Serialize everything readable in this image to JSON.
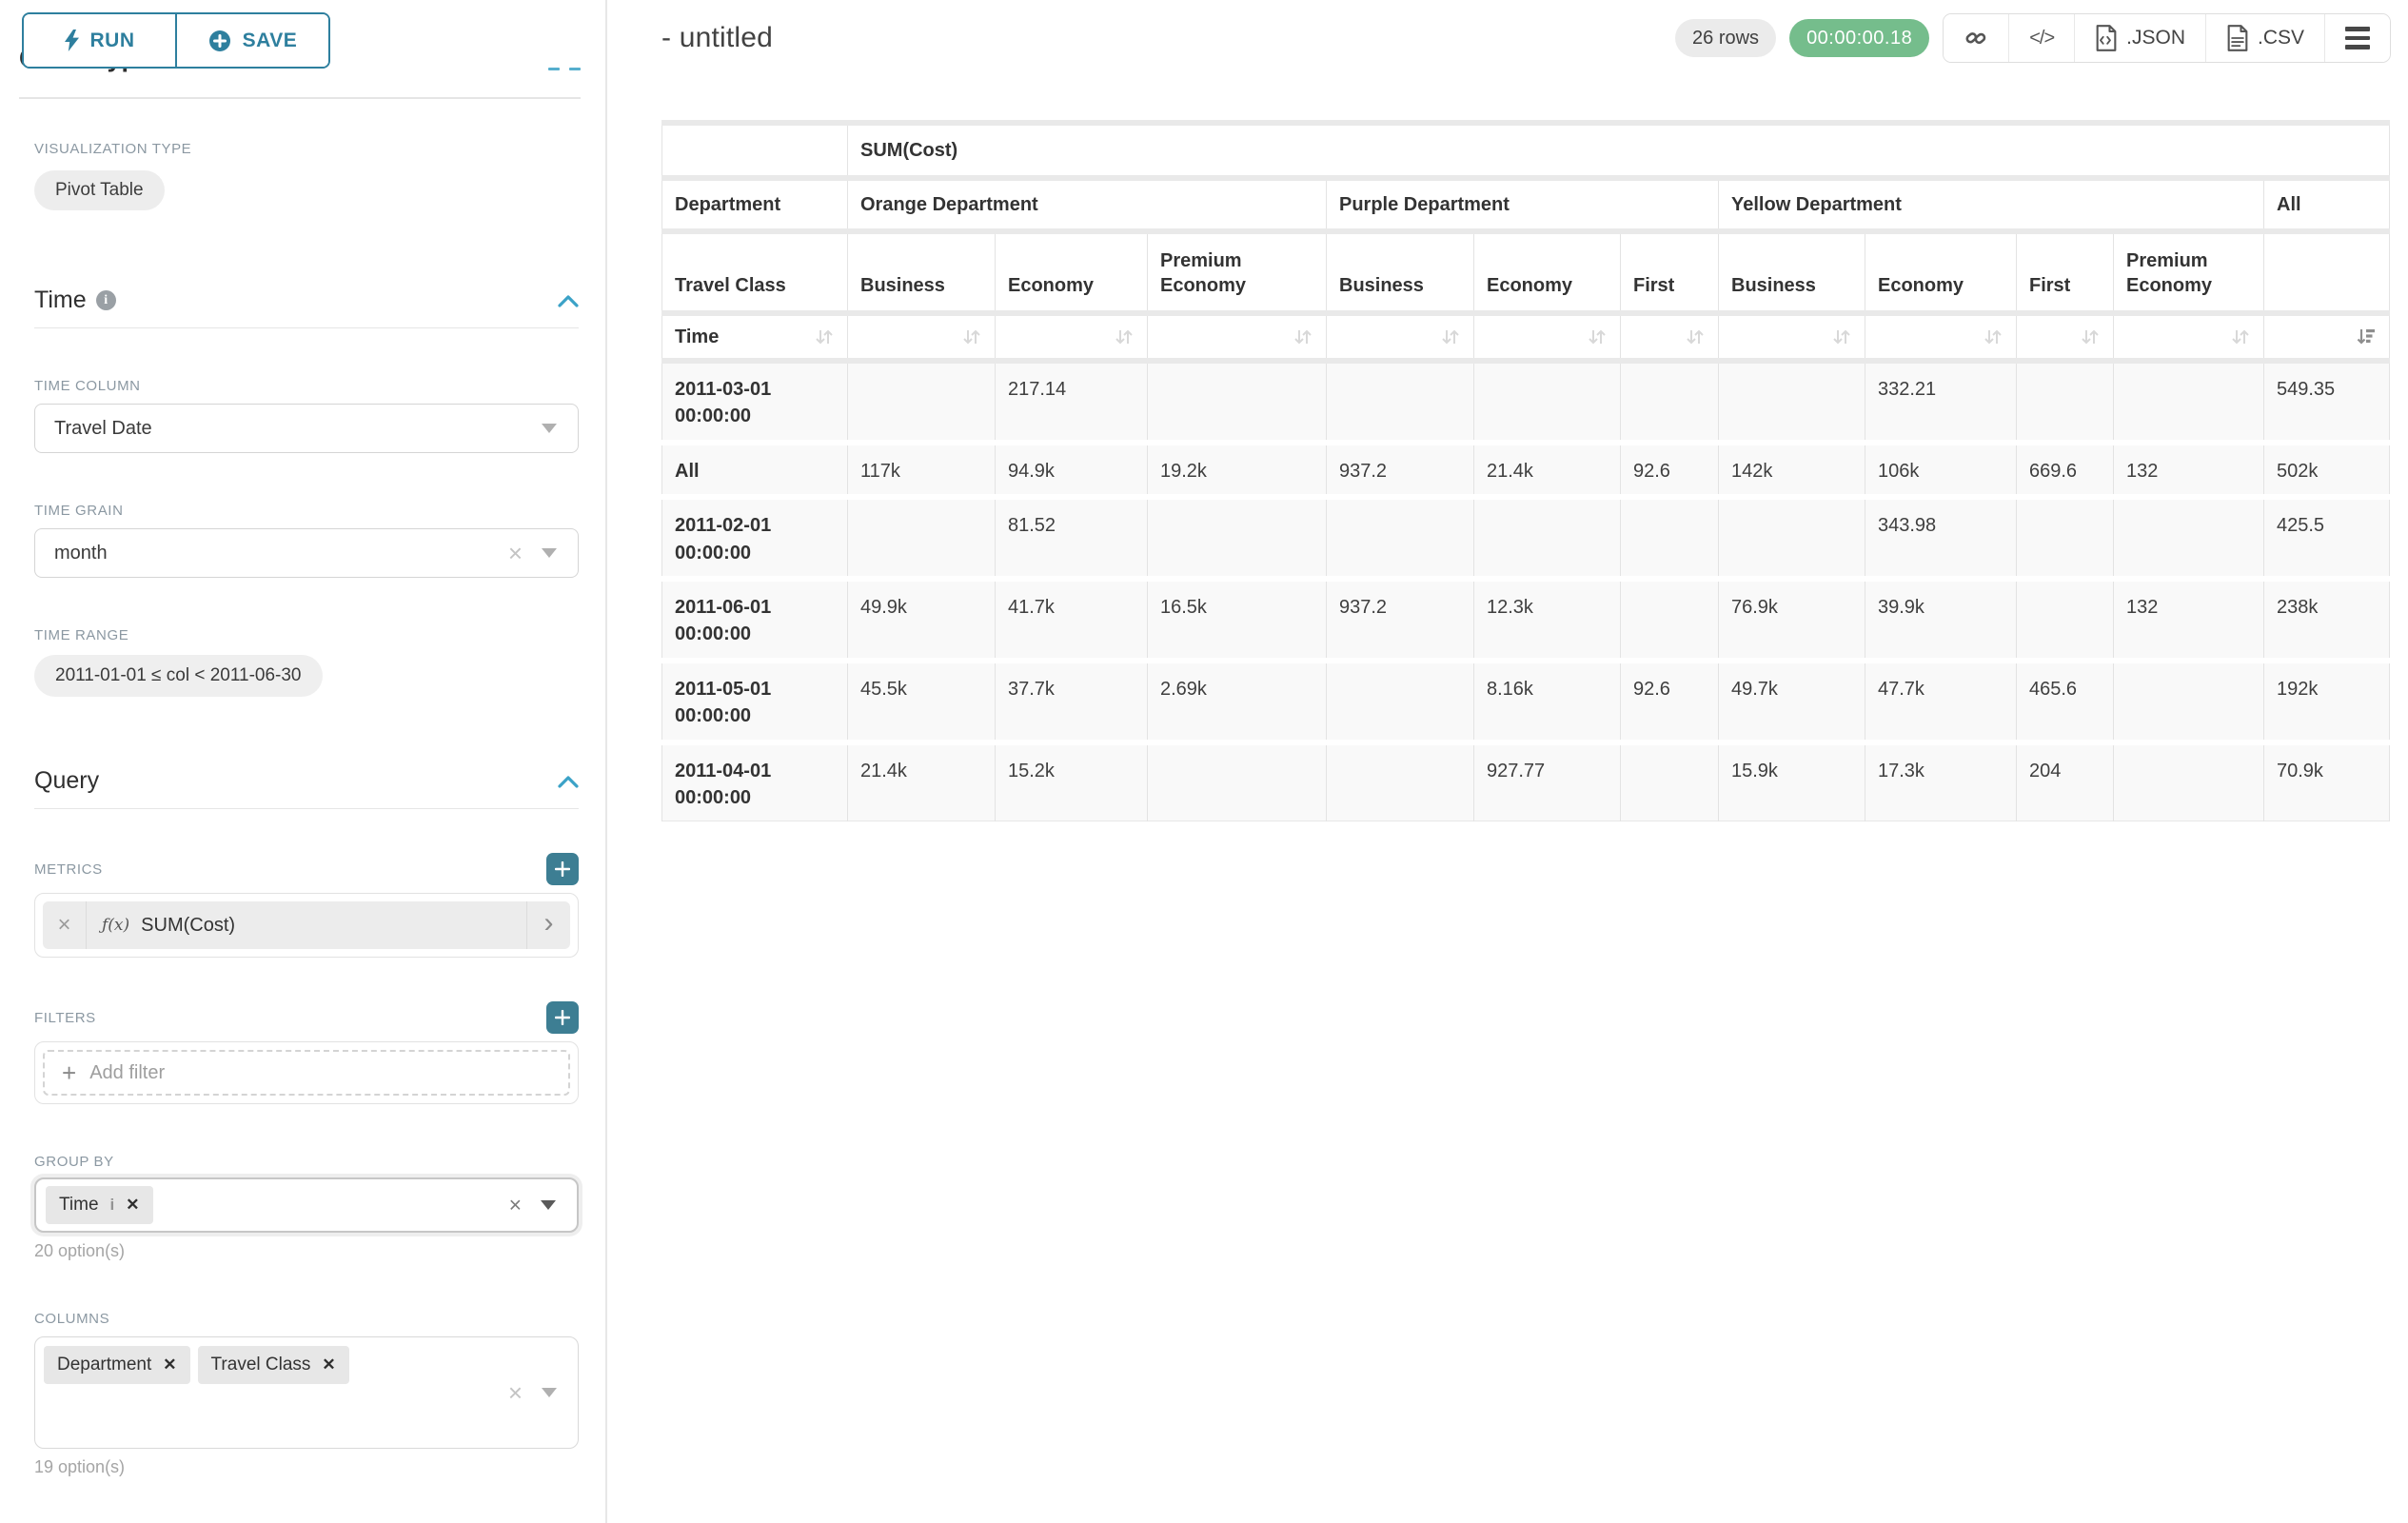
{
  "colors": {
    "accent_teal": "#2e7f9e",
    "plus_button_teal": "#3d7e93",
    "chevron_teal": "#3ba2c7",
    "timer_green": "#75bd8c",
    "header_cell_bg": "#ffffff",
    "data_cell_bg": "#f9f9f9"
  },
  "sidebar": {
    "run_label": "RUN",
    "save_label": "SAVE",
    "chart_type_heading": "Chart Type",
    "viz": {
      "label": "VISUALIZATION TYPE",
      "value": "Pivot Table"
    },
    "time": {
      "title": "Time",
      "column_label": "TIME COLUMN",
      "column_value": "Travel Date",
      "grain_label": "TIME GRAIN",
      "grain_value": "month",
      "range_label": "TIME RANGE",
      "range_value": "2011-01-01 ≤ col < 2011-06-30"
    },
    "query": {
      "title": "Query",
      "metrics_label": "METRICS",
      "metric_fx": "ƒ(x)",
      "metric_value": "SUM(Cost)",
      "filters_label": "FILTERS",
      "add_filter": "Add filter",
      "group_by_label": "GROUP BY",
      "group_by_chip": "Time",
      "group_by_hint": "20 option(s)",
      "columns_label": "COLUMNS",
      "columns_chips": [
        "Department",
        "Travel Class"
      ],
      "columns_hint": "19 option(s)"
    }
  },
  "header": {
    "title": "- untitled",
    "rows_badge": "26 rows",
    "timer": "00:00:00.18",
    "code_glyph": "</>",
    "json_label": ".JSON",
    "csv_label": ".CSV"
  },
  "icons": {
    "run": "lightning-bolt",
    "save": "plus-circle",
    "section_collapse": "chevron-up",
    "select_open": "caret-down",
    "clear": "x",
    "metric_remove": "x",
    "metric_expand": "chevron-right",
    "add": "plus",
    "share": "link-chain",
    "embed": "code-angle-brackets",
    "export_json": "file-code",
    "export_csv": "file-lines",
    "more": "hamburger-menu",
    "sortable": "up-down-arrows",
    "sorted_desc": "arrow-down-with-bars",
    "info": "i-circle"
  },
  "chart_data": {
    "type": "table",
    "metric_label": "SUM(Cost)",
    "col_dimensions": [
      "Department",
      "Travel Class"
    ],
    "row_dimension": "Time",
    "sorted_column": "All",
    "sort_direction": "descending",
    "column_groups": [
      {
        "label": "Orange Department",
        "columns": [
          "Business",
          "Economy",
          "Premium Economy"
        ]
      },
      {
        "label": "Purple Department",
        "columns": [
          "Business",
          "Economy",
          "First"
        ]
      },
      {
        "label": "Yellow Department",
        "columns": [
          "Business",
          "Economy",
          "First",
          "Premium Economy"
        ]
      },
      {
        "label": "All",
        "columns": [
          ""
        ]
      }
    ],
    "rows": [
      {
        "label": "2011-03-01 00:00:00",
        "values": [
          "",
          "217.14",
          "",
          "",
          "",
          "",
          "",
          "332.21",
          "",
          "",
          "549.35"
        ]
      },
      {
        "label": "All",
        "values": [
          "117k",
          "94.9k",
          "19.2k",
          "937.2",
          "21.4k",
          "92.6",
          "142k",
          "106k",
          "669.6",
          "132",
          "502k"
        ]
      },
      {
        "label": "2011-02-01 00:00:00",
        "values": [
          "",
          "81.52",
          "",
          "",
          "",
          "",
          "",
          "343.98",
          "",
          "",
          "425.5"
        ]
      },
      {
        "label": "2011-06-01 00:00:00",
        "values": [
          "49.9k",
          "41.7k",
          "16.5k",
          "937.2",
          "12.3k",
          "",
          "76.9k",
          "39.9k",
          "",
          "132",
          "238k"
        ]
      },
      {
        "label": "2011-05-01 00:00:00",
        "values": [
          "45.5k",
          "37.7k",
          "2.69k",
          "",
          "8.16k",
          "92.6",
          "49.7k",
          "47.7k",
          "465.6",
          "",
          "192k"
        ]
      },
      {
        "label": "2011-04-01 00:00:00",
        "values": [
          "21.4k",
          "15.2k",
          "",
          "",
          "927.77",
          "",
          "15.9k",
          "17.3k",
          "204",
          "",
          "70.9k"
        ]
      }
    ]
  }
}
